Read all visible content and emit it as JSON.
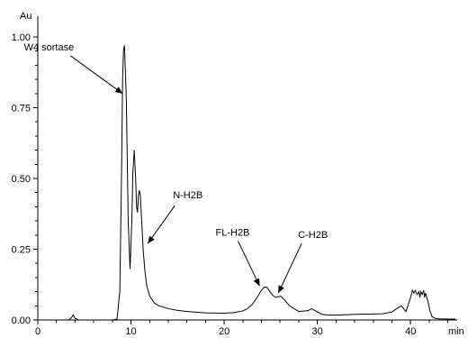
{
  "chart_data": {
    "type": "line",
    "title": "",
    "xlabel": "min",
    "ylabel": "Au",
    "xlim": [
      0,
      45
    ],
    "ylim": [
      0,
      1.0
    ],
    "x_ticks": [
      0,
      10,
      20,
      30,
      40
    ],
    "y_ticks": [
      "0.00",
      "0.25",
      "0.50",
      "0.75",
      "1.00"
    ],
    "grid": false,
    "series": [
      {
        "x": [
          0,
          3.3,
          3.6,
          3.8,
          4.0,
          4.4,
          5,
          6,
          7,
          8,
          8.5,
          8.8,
          9.0,
          9.1,
          9.2,
          9.3,
          9.5,
          9.7,
          9.9,
          10.1,
          10.2,
          10.35,
          10.5,
          10.6,
          10.7,
          10.8,
          10.9,
          11.0,
          11.15,
          11.3,
          11.5,
          11.7,
          12.0,
          12.5,
          13,
          14,
          15,
          16,
          18,
          20,
          21,
          22,
          22.5,
          23,
          23.5,
          24,
          24.3,
          24.6,
          24.9,
          25.2,
          25.5,
          25.8,
          26.1,
          26.5,
          27,
          28,
          29,
          29.4,
          29.8,
          30.5,
          31,
          32,
          34,
          36,
          37,
          38,
          38.5,
          39,
          39.5,
          40.0,
          40.2,
          40.35,
          40.5,
          40.7,
          40.9,
          41.0,
          41.1,
          41.25,
          41.4,
          41.5,
          41.6,
          41.75,
          41.9,
          42.1,
          42.3,
          42.6,
          43,
          44,
          44.8
        ],
        "y": [
          0.0,
          0.0,
          0.008,
          0.018,
          0.006,
          0.0,
          0.0,
          0.0,
          0.0,
          0.0,
          0.003,
          0.1,
          0.55,
          0.85,
          0.955,
          0.97,
          0.78,
          0.35,
          0.18,
          0.36,
          0.52,
          0.6,
          0.5,
          0.4,
          0.38,
          0.44,
          0.458,
          0.44,
          0.35,
          0.25,
          0.17,
          0.12,
          0.085,
          0.06,
          0.05,
          0.04,
          0.034,
          0.03,
          0.025,
          0.024,
          0.026,
          0.032,
          0.04,
          0.055,
          0.078,
          0.105,
          0.116,
          0.115,
          0.1,
          0.087,
          0.08,
          0.082,
          0.084,
          0.07,
          0.05,
          0.03,
          0.033,
          0.04,
          0.032,
          0.02,
          0.018,
          0.017,
          0.02,
          0.021,
          0.022,
          0.028,
          0.04,
          0.05,
          0.03,
          0.08,
          0.105,
          0.095,
          0.104,
          0.09,
          0.1,
          0.08,
          0.1,
          0.09,
          0.105,
          0.08,
          0.095,
          0.078,
          0.06,
          0.03,
          0.012,
          0.006,
          0.004,
          0.003,
          0.003
        ]
      }
    ],
    "annotations": [
      {
        "text": "W4 sortase",
        "x": 9.1,
        "y": 0.8
      },
      {
        "text": "N-H2B",
        "x": 11.8,
        "y": 0.27
      },
      {
        "text": "FL-H2B",
        "x": 23.8,
        "y": 0.12
      },
      {
        "text": "C-H2B",
        "x": 25.8,
        "y": 0.095
      }
    ]
  }
}
